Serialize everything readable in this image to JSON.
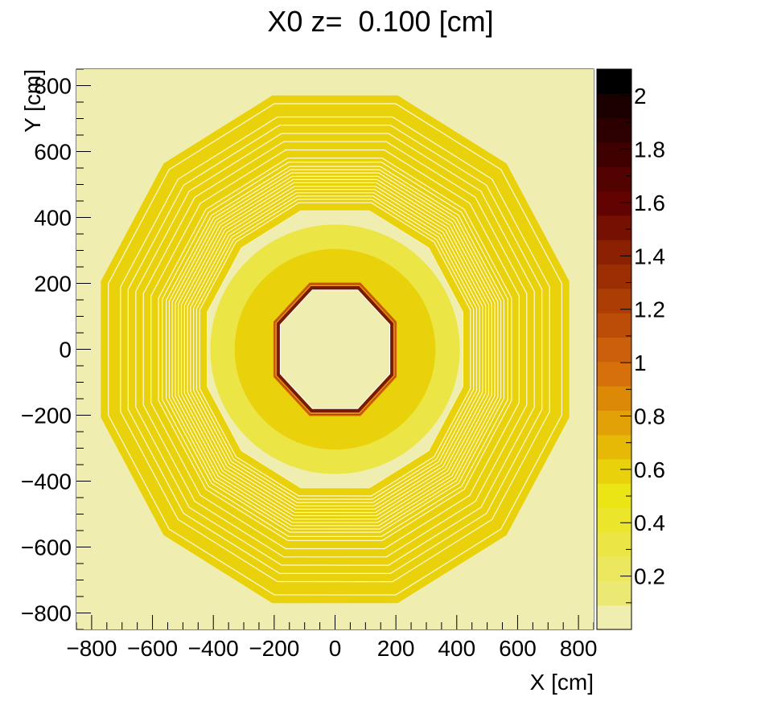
{
  "chart_data": {
    "type": "heatmap",
    "title": "X0 z=  0.100 [cm]",
    "xlabel": "X [cm]",
    "ylabel": "Y [cm]",
    "xlim": [
      -850,
      850
    ],
    "ylim": [
      -850,
      850
    ],
    "x_ticks": [
      -800,
      -600,
      -400,
      -200,
      0,
      200,
      400,
      600,
      800
    ],
    "x_tick_labels": [
      "−800",
      "−600",
      "−400",
      "−200",
      "0",
      "200",
      "400",
      "600",
      "800"
    ],
    "y_ticks": [
      -800,
      -600,
      -400,
      -200,
      0,
      200,
      400,
      600,
      800
    ],
    "y_tick_labels": [
      "−800",
      "−600",
      "−400",
      "−200",
      "0",
      "200",
      "400",
      "600",
      "800"
    ],
    "colorbar": {
      "range": [
        0,
        2.1
      ],
      "ticks": [
        0.2,
        0.4,
        0.6,
        0.8,
        1,
        1.2,
        1.4,
        1.6,
        1.8,
        2
      ],
      "tick_labels": [
        "0.2",
        "0.4",
        "0.6",
        "0.8",
        "1",
        "1.2",
        "1.4",
        "1.6",
        "1.8",
        "2"
      ],
      "colors": [
        "#efeeb0",
        "#ebe874",
        "#ebe85f",
        "#ebe645",
        "#ebe62c",
        "#ebe515",
        "#e9d20c",
        "#e6b907",
        "#e2a107",
        "#dd8908",
        "#d6700a",
        "#cb5f0b",
        "#bb4d08",
        "#ab3d05",
        "#9c2e03",
        "#8c2002",
        "#761002",
        "#630301",
        "#520301",
        "#3f0000",
        "#2c0000",
        "#1b0000",
        "#000000"
      ]
    },
    "regions": [
      {
        "name": "inner-bore",
        "shape": "octagon",
        "apothem": 190,
        "value": 0.02
      },
      {
        "name": "inner-octagon-wall",
        "shape": "octagon-ring",
        "apothem_inner": 180,
        "apothem_outer": 200,
        "value": 1.7
      },
      {
        "name": "inner-ring",
        "shape": "circle-ring",
        "r_inner": 200,
        "r_outer": 330,
        "value": 0.6
      },
      {
        "name": "gap-ring",
        "shape": "circle-ring",
        "r_inner": 330,
        "r_outer": 410,
        "value": 0.3
      },
      {
        "name": "outer-dodecagon-shell",
        "shape": "dodecagon-ring",
        "apothem_inner": 420,
        "apothem_outer": 770,
        "value": 0.6
      },
      {
        "name": "background",
        "shape": "fill",
        "value": 0.0
      }
    ]
  }
}
